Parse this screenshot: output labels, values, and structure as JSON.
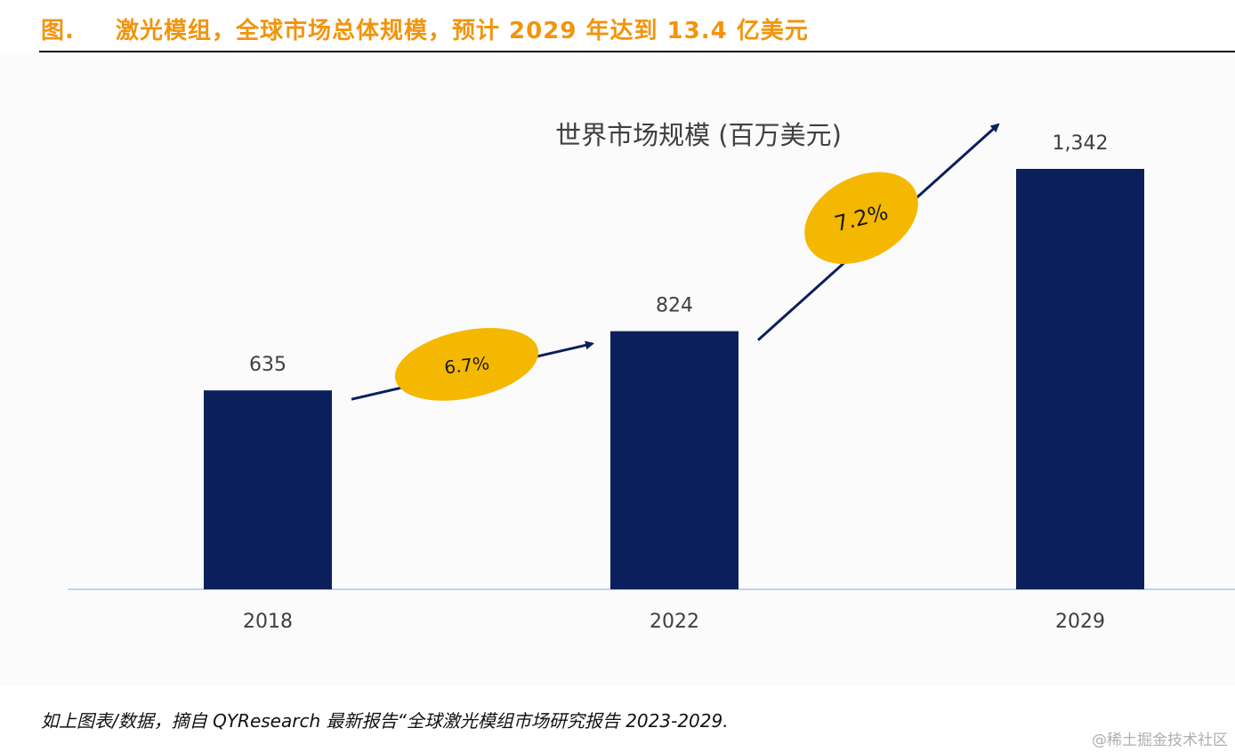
{
  "header": {
    "prefix": "图.",
    "title": "激光模组，全球市场总体规模，预计 2029 年达到 13.4 亿美元"
  },
  "chart_data": {
    "type": "bar",
    "title": "世界市场规模 (百万美元)",
    "categories": [
      "2018",
      "2022",
      "2029"
    ],
    "values": [
      635,
      824,
      1342
    ],
    "data_labels": [
      "635",
      "824",
      "1,342"
    ],
    "growth_annotations": [
      {
        "from": "2018",
        "to": "2022",
        "label": "6.7%"
      },
      {
        "from": "2022",
        "to": "2029",
        "label": "7.2%"
      }
    ],
    "ylim": [
      0,
      1342
    ],
    "grid": false,
    "colors": {
      "bar": "#0B1F5C",
      "arrow": "#0B1F5C",
      "ellipse": "#F5B800",
      "axis": "#BFD4EE",
      "title": "#404040",
      "label": "#404040"
    }
  },
  "footer": {
    "source": "如上图表/数据，摘自 QYResearch 最新报告“全球激光模组市场研究报告 2023-2029."
  },
  "watermark": "@稀土掘金技术社区"
}
